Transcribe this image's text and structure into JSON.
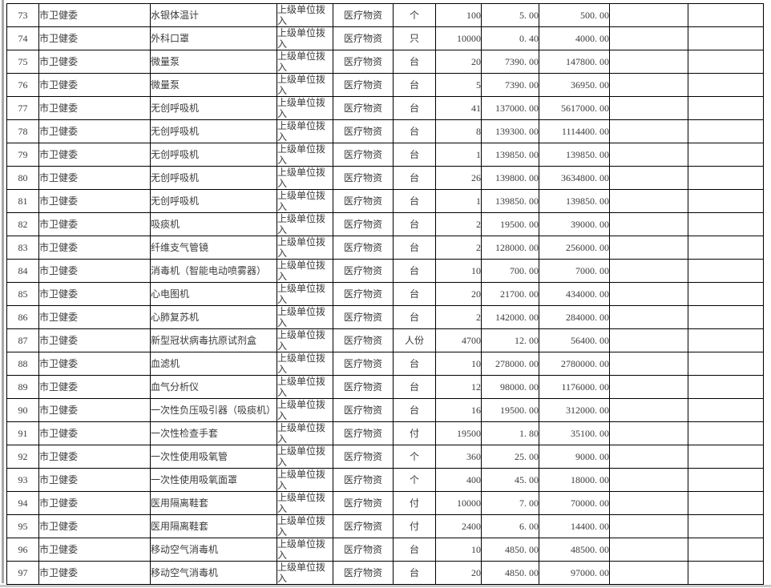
{
  "colors": {
    "grid_border": "#000000",
    "text": "#3b3b3b",
    "page_edge_left": "#a8a8a8",
    "page_edge_bottom": "#c9c9c9",
    "background": "#ffffff"
  },
  "table": {
    "rows": [
      {
        "cells": [
          "73",
          "市卫健委",
          "水银体温计",
          "上级单位拨入",
          "医疗物资",
          "个",
          "100",
          "5. 00",
          "500. 00",
          "",
          ""
        ]
      },
      {
        "cells": [
          "74",
          "市卫健委",
          "外科口罩",
          "上级单位拨入",
          "医疗物资",
          "只",
          "10000",
          "0. 40",
          "4000. 00",
          "",
          ""
        ]
      },
      {
        "cells": [
          "75",
          "市卫健委",
          "微量泵",
          "上级单位拨入",
          "医疗物资",
          "台",
          "20",
          "7390. 00",
          "147800. 00",
          "",
          ""
        ]
      },
      {
        "cells": [
          "76",
          "市卫健委",
          "微量泵",
          "上级单位拨入",
          "医疗物资",
          "台",
          "5",
          "7390. 00",
          "36950. 00",
          "",
          ""
        ]
      },
      {
        "cells": [
          "77",
          "市卫健委",
          "无创呼吸机",
          "上级单位拨入",
          "医疗物资",
          "台",
          "41",
          "137000. 00",
          "5617000. 00",
          "",
          ""
        ]
      },
      {
        "cells": [
          "78",
          "市卫健委",
          "无创呼吸机",
          "上级单位拨入",
          "医疗物资",
          "台",
          "8",
          "139300. 00",
          "1114400. 00",
          "",
          ""
        ]
      },
      {
        "cells": [
          "79",
          "市卫健委",
          "无创呼吸机",
          "上级单位拨入",
          "医疗物资",
          "台",
          "1",
          "139850. 00",
          "139850. 00",
          "",
          ""
        ]
      },
      {
        "cells": [
          "80",
          "市卫健委",
          "无创呼吸机",
          "上级单位拨入",
          "医疗物资",
          "台",
          "26",
          "139800. 00",
          "3634800. 00",
          "",
          ""
        ]
      },
      {
        "cells": [
          "81",
          "市卫健委",
          "无创呼吸机",
          "上级单位拨入",
          "医疗物资",
          "台",
          "1",
          "139850. 00",
          "139850. 00",
          "",
          ""
        ]
      },
      {
        "cells": [
          "82",
          "市卫健委",
          "吸痰机",
          "上级单位拨入",
          "医疗物资",
          "台",
          "2",
          "19500. 00",
          "39000. 00",
          "",
          ""
        ]
      },
      {
        "cells": [
          "83",
          "市卫健委",
          "纤维支气管镜",
          "上级单位拨入",
          "医疗物资",
          "台",
          "2",
          "128000. 00",
          "256000. 00",
          "",
          ""
        ]
      },
      {
        "cells": [
          "84",
          "市卫健委",
          "消毒机（智能电动喷雾器）",
          "上级单位拨入",
          "医疗物资",
          "台",
          "10",
          "700. 00",
          "7000. 00",
          "",
          ""
        ]
      },
      {
        "cells": [
          "85",
          "市卫健委",
          "心电图机",
          "上级单位拨入",
          "医疗物资",
          "台",
          "20",
          "21700. 00",
          "434000. 00",
          "",
          ""
        ]
      },
      {
        "cells": [
          "86",
          "市卫健委",
          "心肺复苏机",
          "上级单位拨入",
          "医疗物资",
          "台",
          "2",
          "142000. 00",
          "284000. 00",
          "",
          ""
        ]
      },
      {
        "cells": [
          "87",
          "市卫健委",
          "新型冠状病毒抗原试剂盒",
          "上级单位拨入",
          "医疗物资",
          "人份",
          "4700",
          "12. 00",
          "56400. 00",
          "",
          ""
        ]
      },
      {
        "cells": [
          "88",
          "市卫健委",
          "血滤机",
          "上级单位拨入",
          "医疗物资",
          "台",
          "10",
          "278000. 00",
          "2780000. 00",
          "",
          ""
        ]
      },
      {
        "cells": [
          "89",
          "市卫健委",
          "血气分析仪",
          "上级单位拨入",
          "医疗物资",
          "台",
          "12",
          "98000. 00",
          "1176000. 00",
          "",
          ""
        ]
      },
      {
        "cells": [
          "90",
          "市卫健委",
          "一次性负压吸引器（吸痰机）",
          "上级单位拨入",
          "医疗物资",
          "台",
          "16",
          "19500. 00",
          "312000. 00",
          "",
          ""
        ]
      },
      {
        "cells": [
          "91",
          "市卫健委",
          "一次性检查手套",
          "上级单位拨入",
          "医疗物资",
          "付",
          "19500",
          "1. 80",
          "35100. 00",
          "",
          ""
        ]
      },
      {
        "cells": [
          "92",
          "市卫健委",
          "一次性使用吸氧管",
          "上级单位拨入",
          "医疗物资",
          "个",
          "360",
          "25. 00",
          "9000. 00",
          "",
          ""
        ]
      },
      {
        "cells": [
          "93",
          "市卫健委",
          "一次性使用吸氧面罩",
          "上级单位拨入",
          "医疗物资",
          "个",
          "400",
          "45. 00",
          "18000. 00",
          "",
          ""
        ]
      },
      {
        "cells": [
          "94",
          "市卫健委",
          "医用隔离鞋套",
          "上级单位拨入",
          "医疗物资",
          "付",
          "10000",
          "7. 00",
          "70000. 00",
          "",
          ""
        ]
      },
      {
        "cells": [
          "95",
          "市卫健委",
          "医用隔离鞋套",
          "上级单位拨入",
          "医疗物资",
          "付",
          "2400",
          "6. 00",
          "14400. 00",
          "",
          ""
        ]
      },
      {
        "cells": [
          "96",
          "市卫健委",
          "移动空气消毒机",
          "上级单位拨入",
          "医疗物资",
          "台",
          "10",
          "4850. 00",
          "48500. 00",
          "",
          ""
        ]
      },
      {
        "cells": [
          "97",
          "市卫健委",
          "移动空气消毒机",
          "上级单位拨入",
          "医疗物资",
          "台",
          "20",
          "4850. 00",
          "97000. 00",
          "",
          ""
        ]
      }
    ]
  }
}
